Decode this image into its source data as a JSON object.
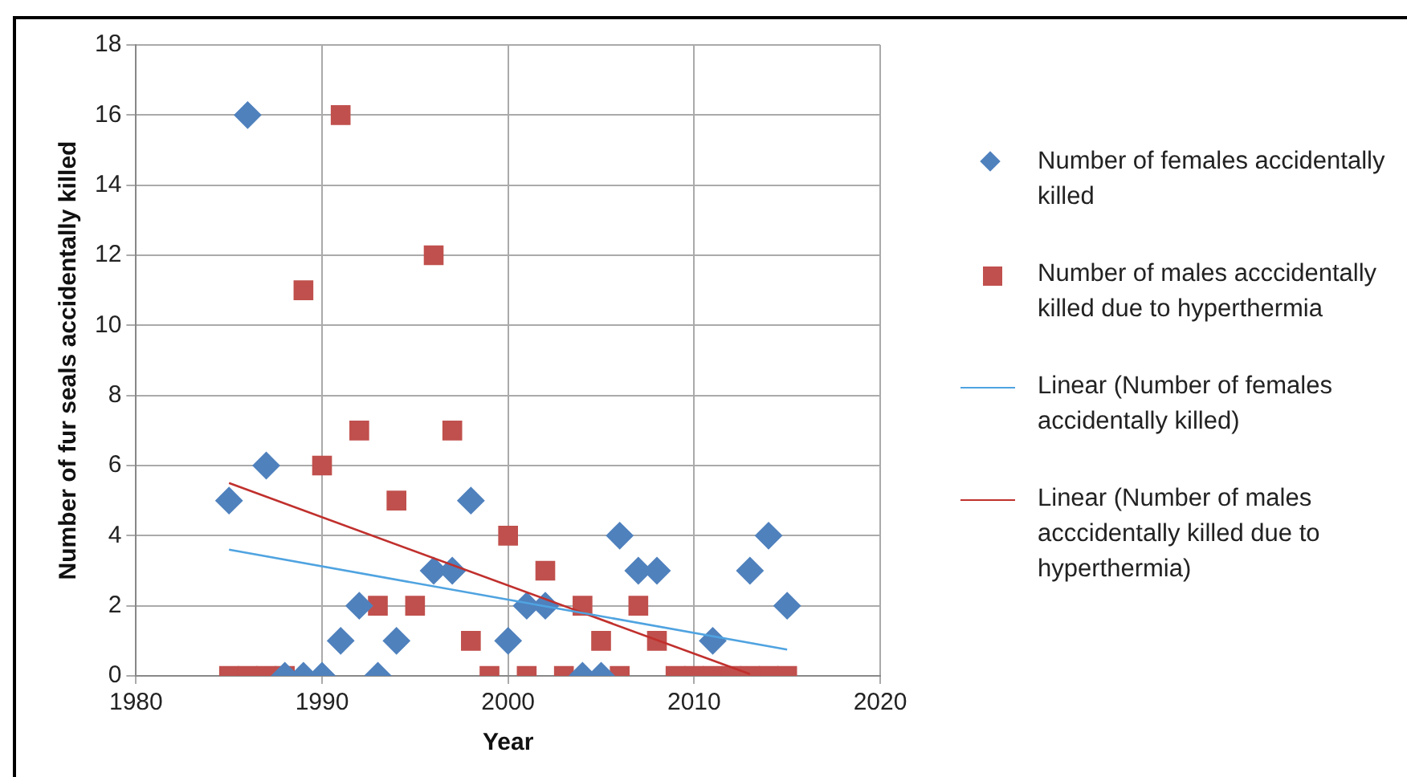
{
  "chart_data": {
    "type": "scatter",
    "xlabel": "Year",
    "ylabel": "Number of fur seals accidentally killed",
    "xlim": [
      1980,
      2020
    ],
    "xticks": [
      1980,
      1990,
      2000,
      2010,
      2020
    ],
    "ylim": [
      0,
      18
    ],
    "yticks": [
      0,
      2,
      4,
      6,
      8,
      10,
      12,
      14,
      16,
      18
    ],
    "grid": true,
    "legend": "right",
    "series": [
      {
        "name": "Number of females accidentally killed",
        "color": "#4f81bd",
        "marker": "diamond",
        "x": [
          1985,
          1986,
          1987,
          1988,
          1989,
          1990,
          1991,
          1992,
          1993,
          1994,
          1996,
          1997,
          1998,
          2000,
          2001,
          2002,
          2004,
          2005,
          2006,
          2007,
          2008,
          2011,
          2013,
          2014,
          2015
        ],
        "values": [
          5,
          16,
          6,
          0,
          0,
          0,
          1,
          2,
          0,
          1,
          3,
          3,
          5,
          1,
          2,
          2,
          0,
          0,
          4,
          3,
          3,
          1,
          3,
          4,
          2
        ]
      },
      {
        "name": "Number of males acccidentally killed due to hyperthermia",
        "color": "#c0504d",
        "marker": "square",
        "x": [
          1985,
          1986,
          1987,
          1988,
          1989,
          1990,
          1991,
          1992,
          1993,
          1994,
          1995,
          1996,
          1997,
          1998,
          1999,
          2000,
          2001,
          2002,
          2003,
          2004,
          2005,
          2006,
          2007,
          2008,
          2009,
          2010,
          2011,
          2012,
          2013,
          2014,
          2015
        ],
        "values": [
          0,
          0,
          0,
          0,
          11,
          6,
          16,
          7,
          2,
          5,
          2,
          12,
          7,
          1,
          0,
          4,
          0,
          3,
          0,
          2,
          1,
          0,
          2,
          1,
          0,
          0,
          0,
          0,
          0,
          0,
          0
        ]
      },
      {
        "name": "Linear (Number of females accidentally killed)",
        "type": "line",
        "color": "#4fa3e0",
        "marker": "none",
        "x": [
          1985,
          2015
        ],
        "values": [
          3.6,
          0.75
        ]
      },
      {
        "name": "Linear (Number of males acccidentally killed due to hyperthermia)",
        "type": "line",
        "color": "#c0302d",
        "marker": "none",
        "x": [
          1985,
          2013
        ],
        "values": [
          5.5,
          0.05
        ]
      }
    ]
  }
}
